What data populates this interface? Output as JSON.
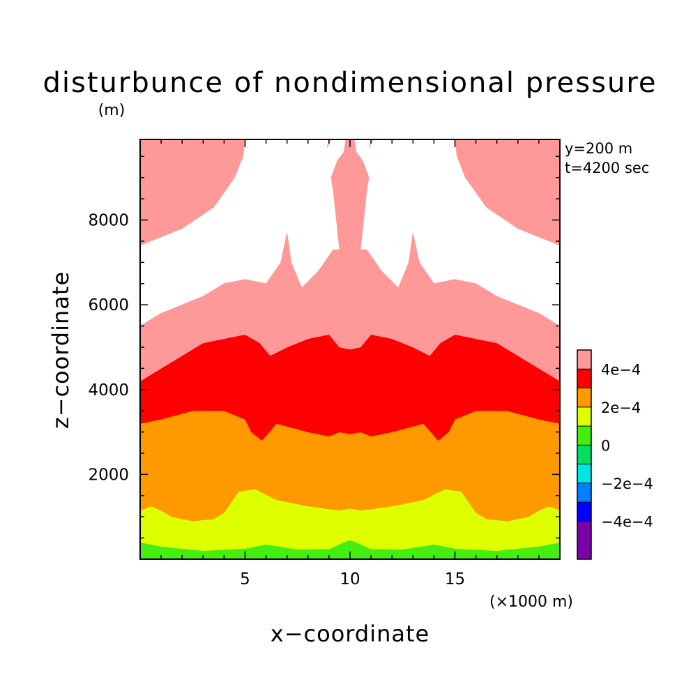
{
  "chart_data": {
    "type": "heatmap",
    "title": "disturbunce of nondimensional pressure",
    "unit_label": "(m)",
    "xlabel": "x−coordinate",
    "ylabel": "z−coordinate",
    "x_unit": "(×1000 m)",
    "xlim": [
      0,
      20
    ],
    "ylim": [
      0,
      9900
    ],
    "x_ticks": [
      {
        "value": 5,
        "label": "5"
      },
      {
        "value": 10,
        "label": "10"
      },
      {
        "value": 15,
        "label": "15"
      }
    ],
    "y_ticks": [
      {
        "value": 2000,
        "label": "2000"
      },
      {
        "value": 4000,
        "label": "4000"
      },
      {
        "value": 6000,
        "label": "6000"
      },
      {
        "value": 8000,
        "label": "8000"
      }
    ],
    "annotations": [
      "y=200 m",
      "t=4200 sec"
    ],
    "colorbar": {
      "levels": [
        {
          "range": [
            -0.0006,
            -0.0004
          ],
          "color": "#7a00a8"
        },
        {
          "range": [
            -0.0004,
            -0.0003
          ],
          "color": "#0000ff"
        },
        {
          "range": [
            -0.0003,
            -0.0002
          ],
          "color": "#0080ff"
        },
        {
          "range": [
            -0.0002,
            -0.0001
          ],
          "color": "#00e5e5"
        },
        {
          "range": [
            -0.0001,
            0.0
          ],
          "color": "#00e060"
        },
        {
          "range": [
            0.0,
            0.0001
          ],
          "color": "#44ee10"
        },
        {
          "range": [
            0.0001,
            0.0002
          ],
          "color": "#ddff00"
        },
        {
          "range": [
            0.0002,
            0.0003
          ],
          "color": "#ff9900"
        },
        {
          "range": [
            0.0003,
            0.0004
          ],
          "color": "#ff0000"
        },
        {
          "range": [
            0.0004,
            0.0005
          ],
          "color": "#ff9999"
        }
      ],
      "tick_labels": [
        {
          "value": 0.0004,
          "label": "4e−4"
        },
        {
          "value": 0.0002,
          "label": "2e−4"
        },
        {
          "value": 0.0,
          "label": "0"
        },
        {
          "value": -0.0002,
          "label": "−2e−4"
        },
        {
          "value": -0.0004,
          "label": "−4e−4"
        }
      ]
    },
    "regions": [
      {
        "level": 5e-05,
        "color": "#44ee10",
        "boundary": [
          [
            0,
            0
          ],
          [
            20,
            0
          ],
          [
            20,
            400
          ],
          [
            19,
            300
          ],
          [
            17,
            200
          ],
          [
            15,
            250
          ],
          [
            14,
            350
          ],
          [
            12.5,
            230
          ],
          [
            11,
            240
          ],
          [
            10.3,
            400
          ],
          [
            10,
            450
          ],
          [
            9.7,
            400
          ],
          [
            9,
            240
          ],
          [
            7.5,
            230
          ],
          [
            6,
            350
          ],
          [
            5,
            250
          ],
          [
            3,
            200
          ],
          [
            1,
            300
          ],
          [
            0,
            400
          ]
        ]
      },
      {
        "level": 0.00015,
        "color": "#ddff00",
        "boundary": [
          [
            0,
            400
          ],
          [
            1,
            300
          ],
          [
            3,
            200
          ],
          [
            5,
            250
          ],
          [
            6,
            350
          ],
          [
            7.5,
            230
          ],
          [
            9,
            240
          ],
          [
            9.7,
            400
          ],
          [
            10,
            450
          ],
          [
            10.3,
            400
          ],
          [
            11,
            240
          ],
          [
            12.5,
            230
          ],
          [
            14,
            350
          ],
          [
            15,
            250
          ],
          [
            17,
            200
          ],
          [
            19,
            300
          ],
          [
            20,
            400
          ],
          [
            20,
            1150
          ],
          [
            19.5,
            1250
          ],
          [
            19,
            1150
          ],
          [
            18.5,
            1000
          ],
          [
            17.5,
            900
          ],
          [
            16.5,
            950
          ],
          [
            16,
            1100
          ],
          [
            15.3,
            1600
          ],
          [
            14.5,
            1650
          ],
          [
            13.5,
            1400
          ],
          [
            12,
            1250
          ],
          [
            10.5,
            1150
          ],
          [
            10,
            1200
          ],
          [
            9.5,
            1150
          ],
          [
            8,
            1250
          ],
          [
            6.5,
            1400
          ],
          [
            5.5,
            1650
          ],
          [
            4.7,
            1600
          ],
          [
            4,
            1100
          ],
          [
            3.5,
            950
          ],
          [
            2.5,
            900
          ],
          [
            1.5,
            1000
          ],
          [
            1,
            1150
          ],
          [
            0.5,
            1250
          ],
          [
            0,
            1150
          ]
        ]
      },
      {
        "level": 0.00025,
        "color": "#ff9900",
        "boundary": [
          [
            0,
            1150
          ],
          [
            0.5,
            1250
          ],
          [
            1,
            1150
          ],
          [
            1.5,
            1000
          ],
          [
            2.5,
            900
          ],
          [
            3.5,
            950
          ],
          [
            4,
            1100
          ],
          [
            4.7,
            1600
          ],
          [
            5.5,
            1650
          ],
          [
            6.5,
            1400
          ],
          [
            8,
            1250
          ],
          [
            9.5,
            1150
          ],
          [
            10,
            1200
          ],
          [
            10.5,
            1150
          ],
          [
            12,
            1250
          ],
          [
            13.5,
            1400
          ],
          [
            14.5,
            1650
          ],
          [
            15.3,
            1600
          ],
          [
            16,
            1100
          ],
          [
            16.5,
            950
          ],
          [
            17.5,
            900
          ],
          [
            18.5,
            1000
          ],
          [
            19,
            1150
          ],
          [
            19.5,
            1250
          ],
          [
            20,
            1150
          ],
          [
            20,
            3200
          ],
          [
            19,
            3300
          ],
          [
            17.5,
            3500
          ],
          [
            16,
            3500
          ],
          [
            15,
            3300
          ],
          [
            14.7,
            3000
          ],
          [
            14.2,
            2800
          ],
          [
            13.5,
            3200
          ],
          [
            12,
            3000
          ],
          [
            11,
            2900
          ],
          [
            10.5,
            3000
          ],
          [
            10,
            2950
          ],
          [
            9.5,
            3000
          ],
          [
            9,
            2900
          ],
          [
            8,
            3000
          ],
          [
            6.5,
            3200
          ],
          [
            5.8,
            2800
          ],
          [
            5.3,
            3000
          ],
          [
            5,
            3300
          ],
          [
            4,
            3500
          ],
          [
            2.5,
            3500
          ],
          [
            1,
            3300
          ],
          [
            0,
            3200
          ]
        ]
      },
      {
        "level": 0.00035,
        "color": "#ff0000",
        "boundary": [
          [
            0,
            3200
          ],
          [
            1,
            3300
          ],
          [
            2.5,
            3500
          ],
          [
            4,
            3500
          ],
          [
            5,
            3300
          ],
          [
            5.3,
            3000
          ],
          [
            5.8,
            2800
          ],
          [
            6.5,
            3200
          ],
          [
            8,
            3000
          ],
          [
            9,
            2900
          ],
          [
            9.5,
            3000
          ],
          [
            10,
            2950
          ],
          [
            10.5,
            3000
          ],
          [
            11,
            2900
          ],
          [
            12,
            3000
          ],
          [
            13.5,
            3200
          ],
          [
            14.2,
            2800
          ],
          [
            14.7,
            3000
          ],
          [
            15,
            3300
          ],
          [
            16,
            3500
          ],
          [
            17.5,
            3500
          ],
          [
            19,
            3300
          ],
          [
            20,
            3200
          ],
          [
            20,
            4200
          ],
          [
            19,
            4500
          ],
          [
            18,
            4800
          ],
          [
            17,
            5100
          ],
          [
            16,
            5200
          ],
          [
            15,
            5300
          ],
          [
            14.3,
            5100
          ],
          [
            13.8,
            4800
          ],
          [
            13,
            5000
          ],
          [
            12,
            5200
          ],
          [
            11,
            5300
          ],
          [
            10.5,
            5000
          ],
          [
            10,
            4950
          ],
          [
            9.5,
            5000
          ],
          [
            9,
            5300
          ],
          [
            8,
            5200
          ],
          [
            7,
            5000
          ],
          [
            6.2,
            4800
          ],
          [
            5.7,
            5100
          ],
          [
            5,
            5300
          ],
          [
            4,
            5200
          ],
          [
            3,
            5100
          ],
          [
            2,
            4800
          ],
          [
            1,
            4500
          ],
          [
            0,
            4200
          ]
        ]
      },
      {
        "level": 0.00045,
        "color": "#ff9999",
        "boundary": [
          [
            0,
            4200
          ],
          [
            1,
            4500
          ],
          [
            2,
            4800
          ],
          [
            3,
            5100
          ],
          [
            4,
            5200
          ],
          [
            5,
            5300
          ],
          [
            5.7,
            5100
          ],
          [
            6.2,
            4800
          ],
          [
            7,
            5000
          ],
          [
            8,
            5200
          ],
          [
            9,
            5300
          ],
          [
            9.5,
            5000
          ],
          [
            10,
            4950
          ],
          [
            10.5,
            5000
          ],
          [
            11,
            5300
          ],
          [
            12,
            5200
          ],
          [
            13,
            5000
          ],
          [
            13.8,
            4800
          ],
          [
            14.3,
            5100
          ],
          [
            15,
            5300
          ],
          [
            16,
            5200
          ],
          [
            17,
            5100
          ],
          [
            18,
            4800
          ],
          [
            19,
            4500
          ],
          [
            20,
            4200
          ],
          [
            20,
            5500
          ],
          [
            19,
            5800
          ],
          [
            18,
            6000
          ],
          [
            17,
            6200
          ],
          [
            16,
            6500
          ],
          [
            15,
            6600
          ],
          [
            14,
            6500
          ],
          [
            13.3,
            7000
          ],
          [
            13,
            7700
          ],
          [
            12.8,
            7000
          ],
          [
            12.3,
            6400
          ],
          [
            11.5,
            6800
          ],
          [
            10.8,
            7300
          ],
          [
            10.5,
            7300
          ],
          [
            10.3,
            8100
          ],
          [
            10.1,
            8200
          ],
          [
            9.9,
            8200
          ],
          [
            9.7,
            8100
          ],
          [
            9.5,
            7300
          ],
          [
            9.2,
            7300
          ],
          [
            8.5,
            6800
          ],
          [
            7.7,
            6400
          ],
          [
            7.2,
            7000
          ],
          [
            7,
            7700
          ],
          [
            6.7,
            7000
          ],
          [
            6,
            6500
          ],
          [
            5,
            6600
          ],
          [
            4,
            6500
          ],
          [
            3,
            6200
          ],
          [
            2,
            6000
          ],
          [
            1,
            5800
          ],
          [
            0,
            5500
          ]
        ]
      },
      {
        "level": 0.00045,
        "color": "#ff9999",
        "boundary": [
          [
            9.5,
            7300
          ],
          [
            9.6,
            7800
          ],
          [
            9.8,
            7500
          ],
          [
            10.2,
            7500
          ],
          [
            10.4,
            7800
          ],
          [
            10.5,
            7300
          ],
          [
            10.8,
            8700
          ],
          [
            10.9,
            9000
          ],
          [
            10.6,
            9400
          ],
          [
            10.3,
            9600
          ],
          [
            10.2,
            9900
          ],
          [
            9.8,
            9900
          ],
          [
            9.7,
            9600
          ],
          [
            9.4,
            9400
          ],
          [
            9.1,
            9000
          ],
          [
            9.2,
            8700
          ]
        ]
      },
      {
        "level": 0.00045,
        "color": "#ff9999",
        "boundary": [
          [
            0,
            7400
          ],
          [
            0.5,
            7500
          ],
          [
            2,
            7800
          ],
          [
            3.5,
            8300
          ],
          [
            4.5,
            9000
          ],
          [
            4.9,
            9500
          ],
          [
            5,
            9900
          ],
          [
            0,
            9900
          ]
        ]
      },
      {
        "level": 0.00045,
        "color": "#ff9999",
        "boundary": [
          [
            20,
            7400
          ],
          [
            19.5,
            7500
          ],
          [
            18,
            7800
          ],
          [
            16.5,
            8300
          ],
          [
            15.5,
            9000
          ],
          [
            15.1,
            9500
          ],
          [
            15,
            9900
          ],
          [
            20,
            9900
          ]
        ]
      },
      {
        "level": 0.00045,
        "color": "#ff9999",
        "boundary": [
          [
            8.9,
            9700
          ],
          [
            9.0,
            9900
          ],
          [
            9.1,
            9900
          ]
        ]
      },
      {
        "level": 0.00045,
        "color": "#ff9999",
        "boundary": [
          [
            10.9,
            9700
          ],
          [
            11.0,
            9900
          ],
          [
            11.1,
            9900
          ]
        ]
      }
    ]
  }
}
